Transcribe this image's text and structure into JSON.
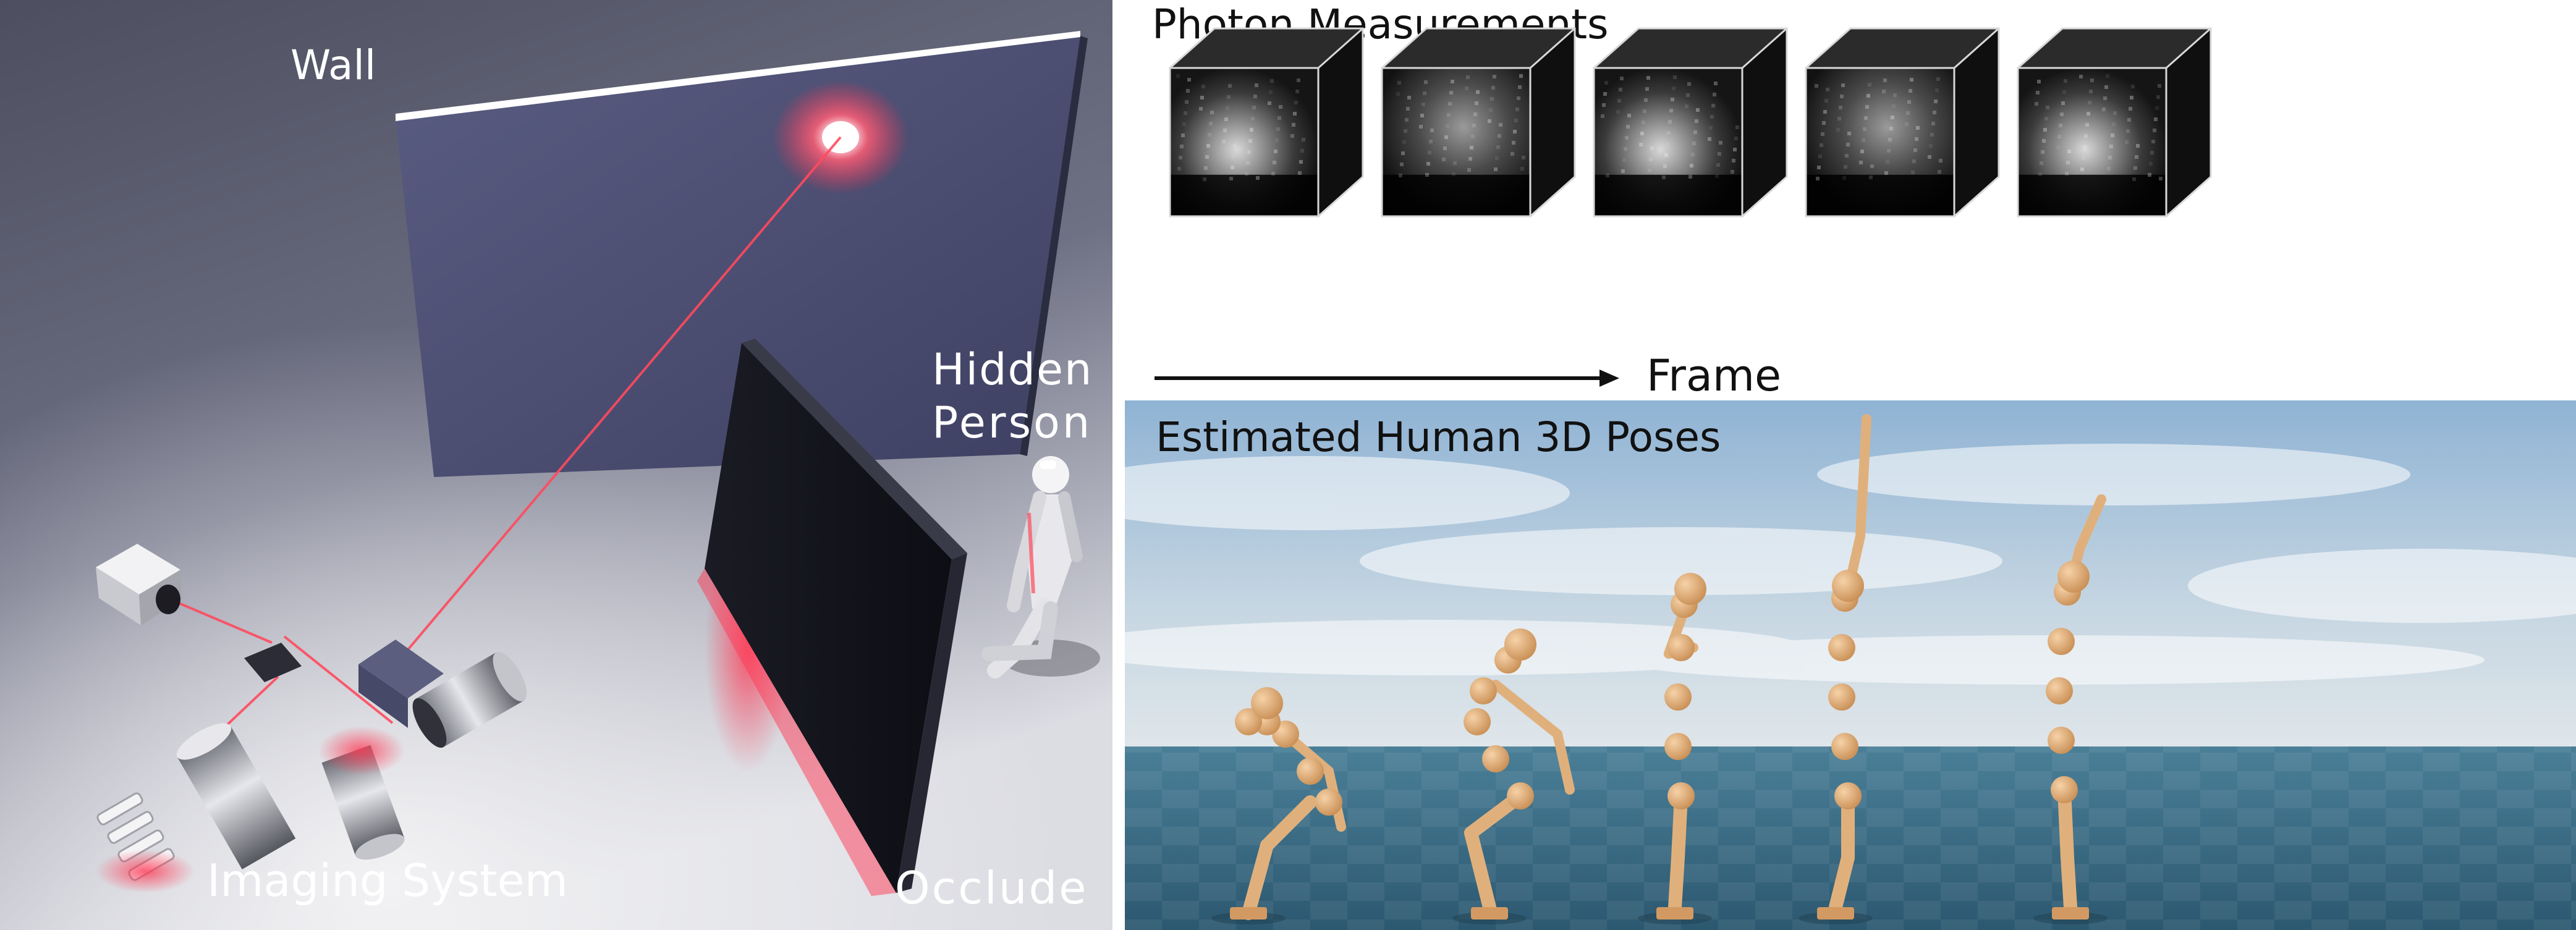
{
  "scene": {
    "wall_label": "Wall",
    "hidden_person_line1": "Hidden",
    "hidden_person_line2": "Person",
    "imaging_system_label": "Imaging System",
    "occluder_label": "Occlude"
  },
  "measurements": {
    "title": "Photon Measurements",
    "frame_label": "Frame",
    "frame_count": 5
  },
  "poses": {
    "title": "Estimated Human 3D Poses",
    "figure_count": 5
  },
  "colors": {
    "laser": "#ff4a5e",
    "floor": "#3d6f85",
    "figure": "#e0b07c",
    "wall": "#4a4d6e"
  }
}
